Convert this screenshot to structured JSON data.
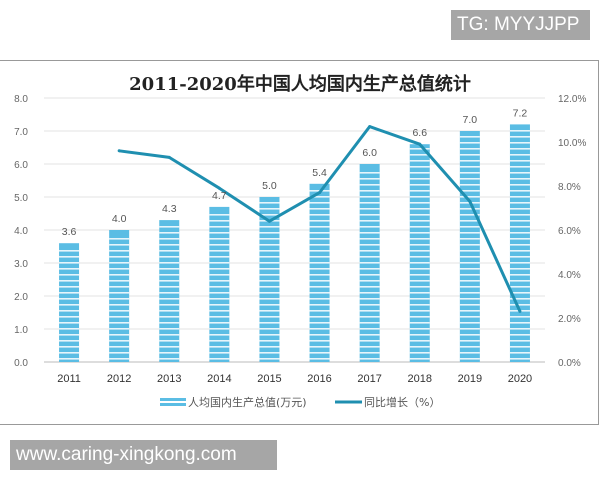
{
  "watermark_tag": "TG: MYYJJPP",
  "footer_url": "www.caring-xingkong.com",
  "chart_data": {
    "type": "bar+line",
    "title": "2011-2020年中国人均国内生产总值统计",
    "categories": [
      "2011",
      "2012",
      "2013",
      "2014",
      "2015",
      "2016",
      "2017",
      "2018",
      "2019",
      "2020"
    ],
    "series": [
      {
        "name": "人均国内生产总值(万元)",
        "type": "bar",
        "axis": "left",
        "color": "#5bbde4",
        "values": [
          3.6,
          4.0,
          4.3,
          4.7,
          5.0,
          5.4,
          6.0,
          6.6,
          7.0,
          7.2
        ],
        "labels": [
          "3.6",
          "4.0",
          "4.3",
          "4.7",
          "5.0",
          "5.4",
          "6.0",
          "6.6",
          "7.0",
          "7.2"
        ]
      },
      {
        "name": "同比增长（%）",
        "type": "line",
        "axis": "right",
        "color": "#1f8fb0",
        "values": [
          null,
          9.6,
          9.3,
          7.9,
          6.4,
          7.7,
          10.7,
          9.9,
          7.3,
          2.3
        ]
      }
    ],
    "yleft": {
      "ylim": [
        0,
        8
      ],
      "ticks": [
        "0.0",
        "1.0",
        "2.0",
        "3.0",
        "4.0",
        "5.0",
        "6.0",
        "7.0",
        "8.0"
      ]
    },
    "yright": {
      "ylim": [
        0,
        12
      ],
      "ticks": [
        "0.0%",
        "2.0%",
        "4.0%",
        "6.0%",
        "8.0%",
        "10.0%",
        "12.0%"
      ]
    },
    "grid": true,
    "legend": "bottom"
  }
}
